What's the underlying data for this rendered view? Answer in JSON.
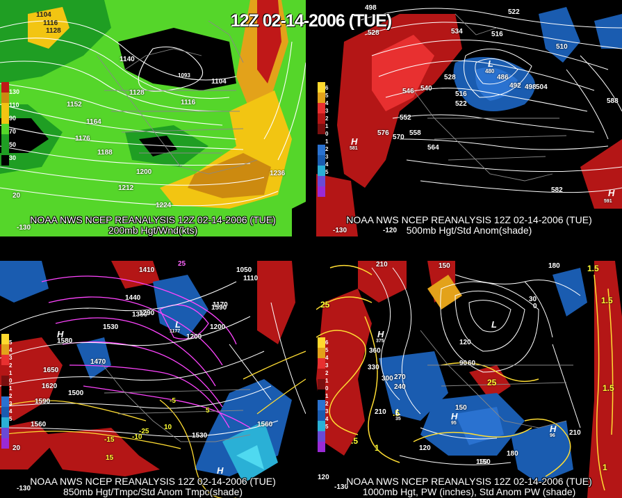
{
  "main_title": "12Z 02-14-2006 (TUE)",
  "panels": {
    "top_left": {
      "line1": "NOAA NWS NCEP REANALYSIS 12Z 02-14-2006 (TUE)",
      "line2": "200mb Hgt/Wnd(kts)",
      "legend": [
        "130",
        "110",
        "90",
        "70",
        "50",
        "30"
      ],
      "contours": [
        "1104",
        "1116",
        "1128",
        "1140",
        "1116",
        "1128",
        "1104",
        "1152",
        "1164",
        "1176",
        "1188",
        "1200",
        "1212",
        "1224",
        "1236",
        "1093"
      ],
      "lon": [
        "-130",
        "20"
      ]
    },
    "top_right": {
      "line1": "NOAA NWS NCEP REANALYSIS 12Z 02-14-2006 (TUE)",
      "line2": "500mb Hgt/Std Anom(shade)",
      "legend": [
        "6",
        "5",
        "4",
        "3",
        "2",
        "1",
        "0",
        "1",
        "2",
        "3",
        "4",
        "5"
      ],
      "contours": [
        "498",
        "528",
        "522",
        "534",
        "516",
        "510",
        "480",
        "486",
        "492",
        "498",
        "504",
        "540",
        "546",
        "528",
        "516",
        "522",
        "552",
        "558",
        "564",
        "570",
        "576",
        "582",
        "588",
        "581",
        "591"
      ],
      "lon": [
        "-130",
        "-120"
      ],
      "highs": [
        "H",
        "H"
      ],
      "lows": [
        "L"
      ]
    },
    "bottom_left": {
      "line1": "NOAA NWS NCEP REANALYSIS 12Z 02-14-2006 (TUE)",
      "line2": "850mb Hgt/Tmpc/Std Anom Tmpc(shade)",
      "legend": [
        "5",
        "4",
        "3",
        "2",
        "1",
        "0",
        "1",
        "2",
        "3",
        "4",
        "5"
      ],
      "contours": [
        "1410",
        "1440",
        "1530",
        "1380",
        "1170",
        "1200",
        "1470",
        "1500",
        "1560",
        "1590",
        "1620",
        "1650",
        "1580",
        "1560",
        "1530",
        "1590",
        "1050",
        "1110",
        "1200",
        "1290",
        "25",
        "-25",
        "-15",
        "-10",
        "15",
        "10",
        "5",
        "-5",
        "1177"
      ],
      "lon": [
        "-130",
        "20"
      ],
      "highs": [
        "H",
        "H"
      ],
      "lows": [
        "L"
      ]
    },
    "bottom_right": {
      "line1": "NOAA NWS NCEP REANALYSIS 12Z 02-14-2006 (TUE)",
      "line2": "1000mb Hgt, PW (inches), Std Anom PW (shade)",
      "legend": [
        "6",
        "5",
        "4",
        "3",
        "2",
        "1",
        "0",
        "1",
        "2",
        "3",
        "4",
        "5"
      ],
      "contours": [
        "210",
        "150",
        "180",
        "30",
        "0",
        "60",
        "90",
        "120",
        "360",
        "330",
        "300",
        "270",
        "240",
        "210",
        "150",
        "180",
        "210",
        "120",
        "150",
        "25",
        ".5",
        "1",
        "1.5",
        "25",
        "1.5",
        "1.5",
        "1",
        ".5",
        "95",
        "96",
        "375",
        "35",
        "150"
      ],
      "lon": [
        "120",
        "-130"
      ],
      "highs": [
        "H",
        "H",
        "H"
      ],
      "lows": [
        "L",
        "L"
      ]
    }
  }
}
